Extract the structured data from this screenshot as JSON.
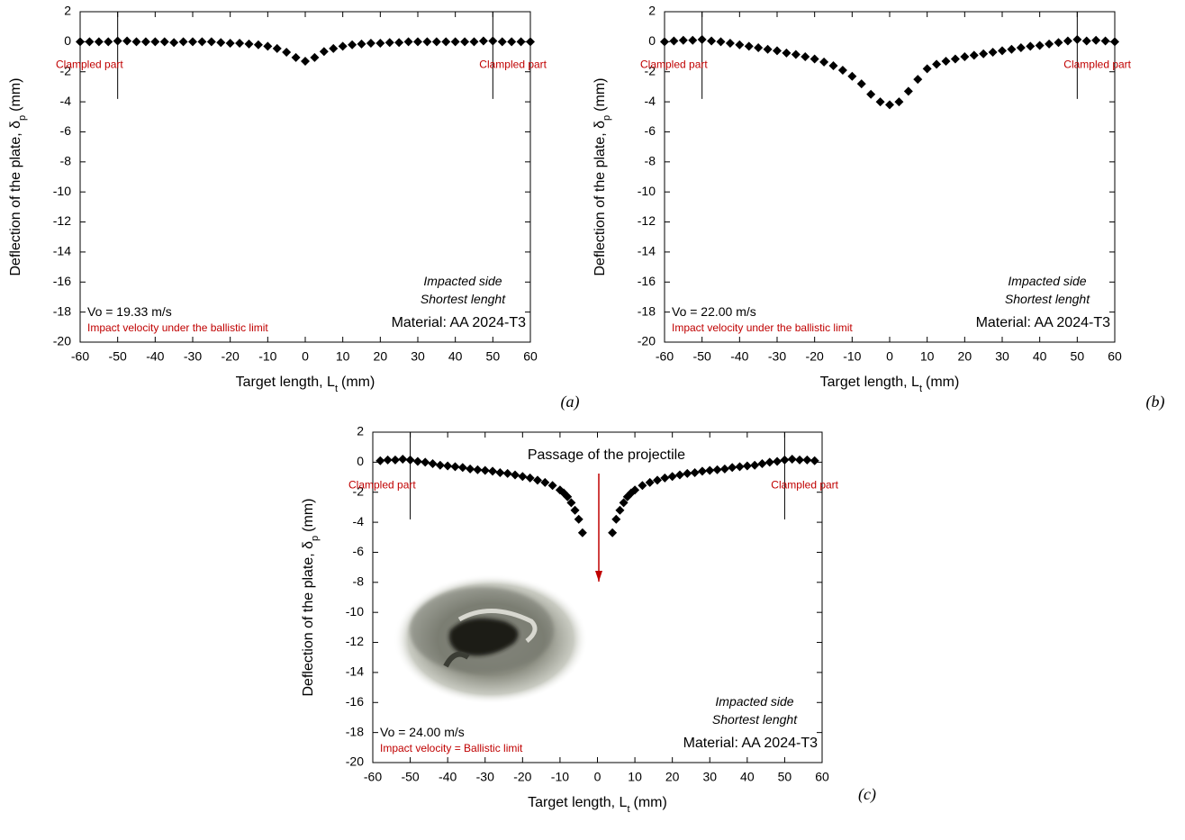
{
  "chart_data": [
    {
      "type": "scatter",
      "color": "#000000",
      "x": [
        -60,
        -57.5,
        -55,
        -52.5,
        -50,
        -47.5,
        -45,
        -42.5,
        -40,
        -37.5,
        -35,
        -32.5,
        -30,
        -27.5,
        -25,
        -22.5,
        -20,
        -17.5,
        -15,
        -12.5,
        -10,
        -7.5,
        -5,
        -2.5,
        0,
        2.5,
        5,
        7.5,
        10,
        12.5,
        15,
        17.5,
        20,
        22.5,
        25,
        27.5,
        30,
        32.5,
        35,
        37.5,
        40,
        42.5,
        45,
        47.5,
        50,
        52.5,
        55,
        57.5,
        60
      ],
      "values": [
        0,
        0,
        0,
        0,
        0.05,
        0.05,
        0,
        0,
        0,
        0,
        -0.05,
        0,
        0,
        0,
        0,
        -0.05,
        -0.1,
        -0.1,
        -0.15,
        -0.2,
        -0.3,
        -0.45,
        -0.7,
        -1.05,
        -1.3,
        -1.05,
        -0.65,
        -0.45,
        -0.3,
        -0.2,
        -0.15,
        -0.1,
        -0.1,
        -0.05,
        -0.05,
        0,
        0,
        0,
        0,
        0,
        0,
        0,
        0,
        0.05,
        0.05,
        0,
        0,
        0,
        0
      ],
      "xlim": [
        -60,
        60
      ],
      "ylim": [
        -20,
        2
      ],
      "xticks": [
        -60,
        -50,
        -40,
        -30,
        -20,
        -10,
        0,
        10,
        20,
        30,
        40,
        50,
        60
      ],
      "yticks": [
        2,
        0,
        -2,
        -4,
        -6,
        -8,
        -10,
        -12,
        -14,
        -16,
        -18,
        -20
      ],
      "xlabel": "Target length, L",
      "xlabel_subscript": "t",
      "xlabel_unit": "(mm)",
      "ylabel": "Deflection of the plate, δ",
      "ylabel_subscript": "p",
      "ylabel_unit": "(mm)",
      "clamp_x": [
        -50,
        50
      ],
      "clamp_labels": [
        "Clampled part",
        "Clampled part"
      ],
      "side_notes": [
        "Impacted side",
        "Shortest lenght"
      ],
      "material": "Material: AA 2024-T3",
      "velocity": "Vo = 19.33 m/s",
      "velocity_note": "Impact velocity under the ballistic limit",
      "panel_label": "(a)"
    },
    {
      "type": "scatter",
      "color": "#000000",
      "x": [
        -60,
        -57.5,
        -55,
        -52.5,
        -50,
        -47.5,
        -45,
        -42.5,
        -40,
        -37.5,
        -35,
        -32.5,
        -30,
        -27.5,
        -25,
        -22.5,
        -20,
        -17.5,
        -15,
        -12.5,
        -10,
        -7.5,
        -5,
        -2.5,
        0,
        2.5,
        5,
        7.5,
        10,
        12.5,
        15,
        17.5,
        20,
        22.5,
        25,
        27.5,
        30,
        32.5,
        35,
        37.5,
        40,
        42.5,
        45,
        47.5,
        50,
        52.5,
        55,
        57.5,
        60
      ],
      "values": [
        0,
        0.05,
        0.1,
        0.1,
        0.15,
        0.05,
        0,
        -0.1,
        -0.2,
        -0.3,
        -0.4,
        -0.5,
        -0.6,
        -0.75,
        -0.85,
        -1.0,
        -1.15,
        -1.35,
        -1.6,
        -1.9,
        -2.3,
        -2.8,
        -3.5,
        -4.0,
        -4.2,
        -4.0,
        -3.3,
        -2.5,
        -1.8,
        -1.5,
        -1.3,
        -1.15,
        -1.0,
        -0.9,
        -0.8,
        -0.7,
        -0.6,
        -0.5,
        -0.4,
        -0.3,
        -0.25,
        -0.15,
        -0.05,
        0.05,
        0.15,
        0.05,
        0.1,
        0.05,
        0
      ],
      "xlim": [
        -60,
        60
      ],
      "ylim": [
        -20,
        2
      ],
      "xticks": [
        -60,
        -50,
        -40,
        -30,
        -20,
        -10,
        0,
        10,
        20,
        30,
        40,
        50,
        60
      ],
      "yticks": [
        2,
        0,
        -2,
        -4,
        -6,
        -8,
        -10,
        -12,
        -14,
        -16,
        -18,
        -20
      ],
      "xlabel": "Target length, L",
      "xlabel_subscript": "t",
      "xlabel_unit": "(mm)",
      "ylabel": "Deflection of the plate, δ",
      "ylabel_subscript": "p",
      "ylabel_unit": "(mm)",
      "clamp_x": [
        -50,
        50
      ],
      "clamp_labels": [
        "Clampled part",
        "Clampled part"
      ],
      "side_notes": [
        "Impacted side",
        "Shortest lenght"
      ],
      "material": "Material: AA 2024-T3",
      "velocity": "Vo = 22.00 m/s",
      "velocity_note": "Impact velocity under the ballistic limit",
      "panel_label": "(b)"
    },
    {
      "type": "scatter",
      "color": "#000000",
      "title": "Passage of the projectile",
      "x": [
        -58,
        -56,
        -54,
        -52,
        -50,
        -48,
        -46,
        -44,
        -42,
        -40,
        -38,
        -36,
        -34,
        -32,
        -30,
        -28,
        -26,
        -24,
        -22,
        -20,
        -18,
        -16,
        -14,
        -12,
        -10,
        -9,
        -8,
        -7,
        -6,
        -5,
        -4,
        4,
        5,
        6,
        7,
        8,
        9,
        10,
        12,
        14,
        16,
        18,
        20,
        22,
        24,
        26,
        28,
        30,
        32,
        34,
        36,
        38,
        40,
        42,
        44,
        46,
        48,
        50,
        52,
        54,
        56,
        58
      ],
      "values": [
        0.1,
        0.15,
        0.15,
        0.2,
        0.15,
        0.05,
        0,
        -0.1,
        -0.2,
        -0.25,
        -0.3,
        -0.35,
        -0.45,
        -0.5,
        -0.55,
        -0.6,
        -0.7,
        -0.75,
        -0.85,
        -0.95,
        -1.05,
        -1.2,
        -1.35,
        -1.55,
        -1.85,
        -2.05,
        -2.3,
        -2.7,
        -3.2,
        -3.8,
        -4.7,
        -4.7,
        -3.8,
        -3.2,
        -2.7,
        -2.3,
        -2.05,
        -1.85,
        -1.55,
        -1.35,
        -1.2,
        -1.05,
        -0.95,
        -0.85,
        -0.75,
        -0.7,
        -0.6,
        -0.55,
        -0.5,
        -0.45,
        -0.35,
        -0.3,
        -0.25,
        -0.2,
        -0.1,
        0,
        0.05,
        0.15,
        0.2,
        0.15,
        0.15,
        0.1
      ],
      "xlim": [
        -60,
        60
      ],
      "ylim": [
        -20,
        2
      ],
      "xticks": [
        -60,
        -50,
        -40,
        -30,
        -20,
        -10,
        0,
        10,
        20,
        30,
        40,
        50,
        60
      ],
      "yticks": [
        2,
        0,
        -2,
        -4,
        -6,
        -8,
        -10,
        -12,
        -14,
        -16,
        -18,
        -20
      ],
      "xlabel": "Target length, L",
      "xlabel_subscript": "t",
      "xlabel_unit": "(mm)",
      "ylabel": "Deflection of the plate, δ",
      "ylabel_subscript": "p",
      "ylabel_unit": "(mm)",
      "clamp_x": [
        -50,
        50
      ],
      "clamp_labels": [
        "Clampled part",
        "Clampled part"
      ],
      "side_notes": [
        "Impacted side",
        "Shortest lenght"
      ],
      "material": "Material: AA 2024-T3",
      "velocity": "Vo = 24.00 m/s",
      "velocity_note": "Impact velocity = Ballistic limit",
      "panel_label": "(c)"
    }
  ]
}
